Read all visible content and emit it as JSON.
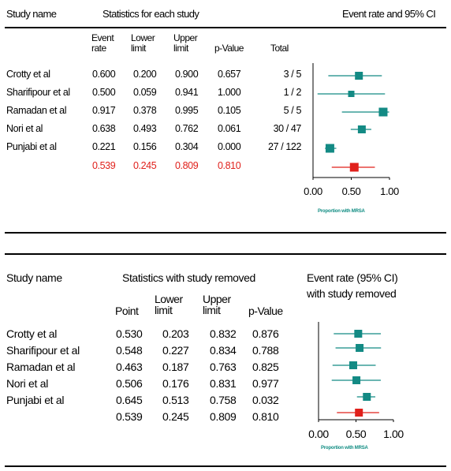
{
  "panel1": {
    "header": {
      "study_name": "Study name",
      "stats_title": "Statistics for each study",
      "plot_title": "Event rate and 95% CI",
      "col_event": "Event rate",
      "col_event_l1": "Event",
      "col_event_l2": "rate",
      "col_lower_l1": "Lower",
      "col_lower_l2": "limit",
      "col_upper_l1": "Upper",
      "col_upper_l2": "limit",
      "col_p": "p-Value",
      "col_total": "Total"
    },
    "rows": [
      {
        "study": "Crotty et al",
        "event_rate": "0.600",
        "lower": "0.200",
        "upper": "0.900",
        "p": "0.657",
        "total": "3 / 5"
      },
      {
        "study": "Sharifipour et al",
        "event_rate": "0.500",
        "lower": "0.059",
        "upper": "0.941",
        "p": "1.000",
        "total": "1 / 2"
      },
      {
        "study": "Ramadan et al",
        "event_rate": "0.917",
        "lower": "0.378",
        "upper": "0.995",
        "p": "0.105",
        "total": "5 / 5"
      },
      {
        "study": "Nori et al",
        "event_rate": "0.638",
        "lower": "0.493",
        "upper": "0.762",
        "p": "0.061",
        "total": "30 / 47"
      },
      {
        "study": "Punjabi et al",
        "event_rate": "0.221",
        "lower": "0.156",
        "upper": "0.304",
        "p": "0.000",
        "total": "27 / 122"
      }
    ],
    "summary": {
      "event_rate": "0.539",
      "lower": "0.245",
      "upper": "0.809",
      "p": "0.810"
    },
    "axis_ticks": [
      "0.00",
      "0.50",
      "1.00"
    ],
    "axis_label": "Proportion with MRSA"
  },
  "panel2": {
    "header": {
      "study_name": "Study name",
      "stats_title": "Statistics with study removed",
      "plot_title_l1": "Event rate (95% CI)",
      "plot_title_l2": "with study removed",
      "col_point": "Point",
      "col_lower_l1": "Lower",
      "col_lower_l2": "limit",
      "col_upper_l1": "Upper",
      "col_upper_l2": "limit",
      "col_p": "p-Value"
    },
    "rows": [
      {
        "study": "Crotty et al",
        "point": "0.530",
        "lower": "0.203",
        "upper": "0.832",
        "p": "0.876"
      },
      {
        "study": "Sharifipour et al",
        "point": "0.548",
        "lower": "0.227",
        "upper": "0.834",
        "p": "0.788"
      },
      {
        "study": "Ramadan et al",
        "point": "0.463",
        "lower": "0.187",
        "upper": "0.763",
        "p": "0.825"
      },
      {
        "study": "Nori et al",
        "point": "0.506",
        "lower": "0.176",
        "upper": "0.831",
        "p": "0.977"
      },
      {
        "study": "Punjabi et al",
        "point": "0.645",
        "lower": "0.513",
        "upper": "0.758",
        "p": "0.032"
      }
    ],
    "summary": {
      "point": "0.539",
      "lower": "0.245",
      "upper": "0.809",
      "p": "0.810"
    },
    "axis_ticks": [
      "0.00",
      "0.50",
      "1.00"
    ],
    "axis_label": "Proportion with MRSA"
  },
  "colors": {
    "study_marker": "#138a84",
    "summary_marker": "#e0201b",
    "summary_text": "#e0201b",
    "axis_label": "#0f8c82"
  },
  "chart_data": [
    {
      "type": "forest",
      "xlim": [
        0,
        1
      ],
      "xticks": [
        0,
        0.5,
        1
      ],
      "xlabel": "Proportion with MRSA",
      "title": "Event rate and 95% CI",
      "studies": [
        {
          "name": "Crotty et al",
          "estimate": 0.6,
          "lower": 0.2,
          "upper": 0.9
        },
        {
          "name": "Sharifipour et al",
          "estimate": 0.5,
          "lower": 0.059,
          "upper": 0.941
        },
        {
          "name": "Ramadan et al",
          "estimate": 0.917,
          "lower": 0.378,
          "upper": 0.995
        },
        {
          "name": "Nori et al",
          "estimate": 0.638,
          "lower": 0.493,
          "upper": 0.762
        },
        {
          "name": "Punjabi et al",
          "estimate": 0.221,
          "lower": 0.156,
          "upper": 0.304
        }
      ],
      "summary": {
        "estimate": 0.539,
        "lower": 0.245,
        "upper": 0.809
      }
    },
    {
      "type": "forest",
      "xlim": [
        0,
        1
      ],
      "xticks": [
        0,
        0.5,
        1
      ],
      "xlabel": "Proportion with MRSA",
      "title": "Event rate (95% CI) with study removed",
      "studies": [
        {
          "name": "Crotty et al",
          "estimate": 0.53,
          "lower": 0.203,
          "upper": 0.832
        },
        {
          "name": "Sharifipour et al",
          "estimate": 0.548,
          "lower": 0.227,
          "upper": 0.834
        },
        {
          "name": "Ramadan et al",
          "estimate": 0.463,
          "lower": 0.187,
          "upper": 0.763
        },
        {
          "name": "Nori et al",
          "estimate": 0.506,
          "lower": 0.176,
          "upper": 0.831
        },
        {
          "name": "Punjabi et al",
          "estimate": 0.645,
          "lower": 0.513,
          "upper": 0.758
        }
      ],
      "summary": {
        "estimate": 0.539,
        "lower": 0.245,
        "upper": 0.809
      }
    }
  ]
}
